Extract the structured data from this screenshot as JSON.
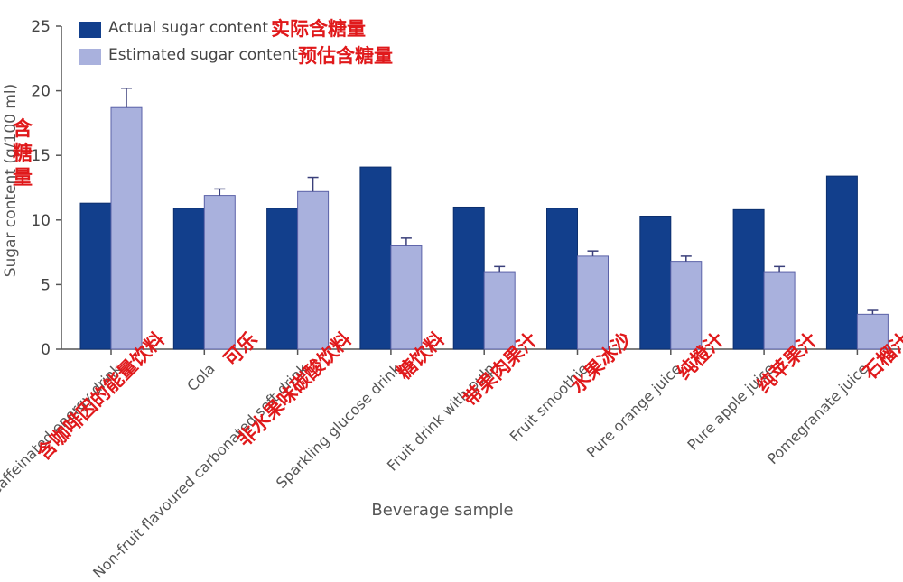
{
  "chart_data": {
    "type": "bar",
    "xlabel": "Beverage sample",
    "ylabel": "Sugar content (g/100 ml)",
    "ylabel_cn": "含糖量",
    "ylim": [
      0,
      25
    ],
    "yticks": [
      "0",
      "5",
      "10",
      "15",
      "20",
      "25"
    ],
    "legend_placement": "top-left",
    "categories": [
      {
        "en": "Caffeinated energy drink",
        "cn": "含咖啡因的能量饮料"
      },
      {
        "en": "Cola",
        "cn": "可乐"
      },
      {
        "en": "Non-fruit flavoured carbonated soft drink",
        "cn": "非水果味碳酸饮料"
      },
      {
        "en": "Sparkling glucose drink",
        "cn": "糖饮料"
      },
      {
        "en": "Fruit drink with pulp",
        "cn": "带果肉果汁"
      },
      {
        "en": "Fruit smoothie",
        "cn": "水果冰沙"
      },
      {
        "en": "Pure orange juice",
        "cn": "纯橙汁"
      },
      {
        "en": "Pure apple juice",
        "cn": "纯苹果汁"
      },
      {
        "en": "Pomegranate juice",
        "cn": "石榴汁"
      }
    ],
    "series": [
      {
        "name": "Actual sugar content",
        "name_cn": "实际含糖量",
        "color": "#123f8c",
        "values": [
          11.3,
          10.9,
          10.9,
          14.1,
          11.0,
          10.9,
          10.3,
          10.8,
          13.4
        ]
      },
      {
        "name": "Estimated sugar content",
        "name_cn": "预估含糖量",
        "color": "#a9b1dd",
        "values": [
          18.7,
          11.9,
          12.2,
          8.0,
          6.0,
          7.2,
          6.8,
          6.0,
          2.7
        ],
        "error": [
          1.5,
          0.5,
          1.1,
          0.6,
          0.4,
          0.4,
          0.4,
          0.4,
          0.3
        ]
      }
    ]
  }
}
